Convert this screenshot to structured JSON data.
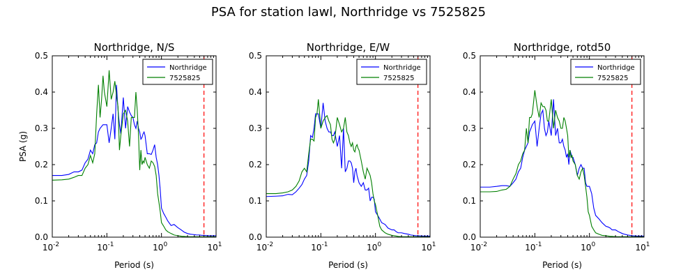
{
  "figure": {
    "suptitle": "PSA for station lawl, Northridge vs 7525825"
  },
  "chart_data": [
    {
      "type": "line",
      "title": "Northridge, N/S",
      "xlabel": "Period (s)",
      "ylabel": "PSA (g)",
      "xscale": "log",
      "xlim": [
        0.01,
        10
      ],
      "ylim": [
        0.0,
        0.5
      ],
      "x_ticks": [
        "10^-2",
        "10^-1",
        "10^0",
        "10^1"
      ],
      "y_ticks": [
        "0.0",
        "0.1",
        "0.2",
        "0.3",
        "0.4",
        "0.5"
      ],
      "legend": "top-right",
      "grid": false,
      "vline": {
        "x": 6.0,
        "color": "#ff0000",
        "style": "dashed"
      },
      "series": [
        {
          "name": "Northridge",
          "color": "#0000ff",
          "x": [
            0.01,
            0.015,
            0.02,
            0.025,
            0.03,
            0.035,
            0.04,
            0.045,
            0.05,
            0.055,
            0.06,
            0.065,
            0.07,
            0.075,
            0.08,
            0.085,
            0.09,
            0.1,
            0.11,
            0.12,
            0.13,
            0.14,
            0.15,
            0.16,
            0.17,
            0.18,
            0.2,
            0.22,
            0.24,
            0.26,
            0.28,
            0.3,
            0.32,
            0.34,
            0.36,
            0.38,
            0.4,
            0.42,
            0.44,
            0.46,
            0.48,
            0.5,
            0.55,
            0.6,
            0.65,
            0.7,
            0.75,
            0.8,
            0.85,
            0.9,
            0.95,
            1.0,
            1.1,
            1.2,
            1.3,
            1.5,
            1.7,
            2.0,
            2.2,
            2.4,
            2.6,
            3.0,
            3.4,
            4.0,
            4.4,
            5.0,
            5.5,
            6.0,
            7.5,
            10.0
          ],
          "y": [
            0.17,
            0.17,
            0.173,
            0.18,
            0.18,
            0.185,
            0.205,
            0.215,
            0.24,
            0.23,
            0.255,
            0.26,
            0.29,
            0.3,
            0.305,
            0.31,
            0.31,
            0.31,
            0.26,
            0.3,
            0.34,
            0.27,
            0.42,
            0.35,
            0.31,
            0.285,
            0.385,
            0.3,
            0.36,
            0.345,
            0.335,
            0.33,
            0.31,
            0.3,
            0.32,
            0.3,
            0.29,
            0.27,
            0.275,
            0.285,
            0.29,
            0.28,
            0.23,
            0.23,
            0.228,
            0.24,
            0.255,
            0.22,
            0.2,
            0.17,
            0.13,
            0.08,
            0.065,
            0.055,
            0.045,
            0.032,
            0.035,
            0.026,
            0.022,
            0.018,
            0.014,
            0.01,
            0.008,
            0.007,
            0.006,
            0.006,
            0.005,
            0.005,
            0.004,
            0.004
          ]
        },
        {
          "name": "7525825",
          "color": "#007f00",
          "x": [
            0.01,
            0.015,
            0.02,
            0.025,
            0.03,
            0.035,
            0.04,
            0.045,
            0.05,
            0.055,
            0.06,
            0.065,
            0.07,
            0.075,
            0.08,
            0.085,
            0.09,
            0.1,
            0.11,
            0.12,
            0.13,
            0.14,
            0.15,
            0.16,
            0.17,
            0.18,
            0.2,
            0.22,
            0.24,
            0.26,
            0.28,
            0.3,
            0.32,
            0.34,
            0.36,
            0.38,
            0.4,
            0.42,
            0.44,
            0.46,
            0.48,
            0.5,
            0.55,
            0.6,
            0.65,
            0.7,
            0.75,
            0.8,
            0.85,
            0.9,
            0.95,
            1.0,
            1.1,
            1.2,
            1.3,
            1.5,
            1.7,
            2.0,
            2.2,
            2.4,
            2.6,
            3.0,
            3.4,
            4.0,
            4.4,
            5.0,
            5.5,
            6.0,
            7.5,
            10.0
          ],
          "y": [
            0.157,
            0.158,
            0.16,
            0.165,
            0.17,
            0.17,
            0.19,
            0.2,
            0.225,
            0.205,
            0.23,
            0.34,
            0.42,
            0.33,
            0.38,
            0.445,
            0.4,
            0.36,
            0.46,
            0.38,
            0.4,
            0.43,
            0.39,
            0.36,
            0.24,
            0.28,
            0.34,
            0.35,
            0.32,
            0.25,
            0.33,
            0.33,
            0.33,
            0.4,
            0.35,
            0.28,
            0.185,
            0.24,
            0.2,
            0.21,
            0.205,
            0.22,
            0.2,
            0.19,
            0.21,
            0.205,
            0.195,
            0.17,
            0.12,
            0.095,
            0.07,
            0.04,
            0.03,
            0.02,
            0.015,
            0.01,
            0.006,
            0.004,
            0.003,
            0.002,
            0.002,
            0.001,
            0.001,
            0.001,
            0.001,
            0.001,
            0.001,
            0.001,
            0.001,
            0.001
          ]
        }
      ]
    },
    {
      "type": "line",
      "title": "Northridge, E/W",
      "xlabel": "Period (s)",
      "ylabel": "",
      "xscale": "log",
      "xlim": [
        0.01,
        10
      ],
      "ylim": [
        0.0,
        0.5
      ],
      "x_ticks": [
        "10^-2",
        "10^-1",
        "10^0",
        "10^1"
      ],
      "y_ticks": [
        "0.0",
        "0.1",
        "0.2",
        "0.3",
        "0.4",
        "0.5"
      ],
      "legend": "top-right",
      "grid": false,
      "vline": {
        "x": 6.0,
        "color": "#ff0000",
        "style": "dashed"
      },
      "series": [
        {
          "name": "Northridge",
          "color": "#0000ff",
          "x": [
            0.01,
            0.015,
            0.02,
            0.025,
            0.03,
            0.035,
            0.04,
            0.045,
            0.05,
            0.055,
            0.06,
            0.065,
            0.07,
            0.075,
            0.08,
            0.085,
            0.09,
            0.1,
            0.11,
            0.12,
            0.13,
            0.14,
            0.15,
            0.16,
            0.17,
            0.18,
            0.2,
            0.22,
            0.24,
            0.26,
            0.28,
            0.3,
            0.32,
            0.34,
            0.36,
            0.38,
            0.4,
            0.42,
            0.44,
            0.46,
            0.48,
            0.5,
            0.55,
            0.6,
            0.65,
            0.7,
            0.75,
            0.8,
            0.85,
            0.9,
            0.95,
            1.0,
            1.1,
            1.2,
            1.3,
            1.5,
            1.7,
            2.0,
            2.2,
            2.4,
            2.6,
            3.0,
            3.4,
            4.0,
            4.4,
            5.0,
            5.5,
            6.0,
            7.5,
            10.0
          ],
          "y": [
            0.112,
            0.113,
            0.114,
            0.118,
            0.117,
            0.125,
            0.135,
            0.145,
            0.16,
            0.17,
            0.21,
            0.28,
            0.275,
            0.3,
            0.34,
            0.34,
            0.34,
            0.3,
            0.37,
            0.32,
            0.3,
            0.29,
            0.29,
            0.28,
            0.28,
            0.29,
            0.25,
            0.28,
            0.19,
            0.3,
            0.18,
            0.19,
            0.21,
            0.21,
            0.205,
            0.19,
            0.15,
            0.18,
            0.19,
            0.17,
            0.16,
            0.15,
            0.14,
            0.15,
            0.13,
            0.13,
            0.135,
            0.1,
            0.11,
            0.11,
            0.105,
            0.07,
            0.06,
            0.05,
            0.04,
            0.035,
            0.025,
            0.02,
            0.02,
            0.015,
            0.012,
            0.012,
            0.01,
            0.008,
            0.006,
            0.005,
            0.004,
            0.004,
            0.003,
            0.003
          ]
        },
        {
          "name": "7525825",
          "color": "#007f00",
          "x": [
            0.01,
            0.015,
            0.02,
            0.025,
            0.03,
            0.035,
            0.04,
            0.045,
            0.05,
            0.055,
            0.06,
            0.065,
            0.07,
            0.075,
            0.08,
            0.085,
            0.09,
            0.1,
            0.11,
            0.12,
            0.13,
            0.14,
            0.15,
            0.16,
            0.17,
            0.18,
            0.2,
            0.22,
            0.24,
            0.26,
            0.28,
            0.3,
            0.32,
            0.34,
            0.36,
            0.38,
            0.4,
            0.42,
            0.44,
            0.46,
            0.48,
            0.5,
            0.55,
            0.6,
            0.65,
            0.7,
            0.75,
            0.8,
            0.85,
            0.9,
            0.95,
            1.0,
            1.1,
            1.2,
            1.3,
            1.5,
            1.7,
            2.0,
            2.2,
            2.4,
            2.6,
            3.0,
            3.4,
            4.0,
            4.4,
            5.0,
            5.5,
            6.0,
            7.5,
            10.0
          ],
          "y": [
            0.12,
            0.12,
            0.122,
            0.125,
            0.13,
            0.14,
            0.155,
            0.18,
            0.19,
            0.18,
            0.23,
            0.27,
            0.27,
            0.265,
            0.33,
            0.34,
            0.38,
            0.3,
            0.32,
            0.33,
            0.335,
            0.32,
            0.31,
            0.27,
            0.26,
            0.27,
            0.33,
            0.31,
            0.29,
            0.3,
            0.33,
            0.29,
            0.28,
            0.26,
            0.25,
            0.26,
            0.24,
            0.235,
            0.25,
            0.255,
            0.245,
            0.24,
            0.21,
            0.18,
            0.16,
            0.19,
            0.18,
            0.17,
            0.15,
            0.12,
            0.1,
            0.09,
            0.06,
            0.03,
            0.02,
            0.012,
            0.008,
            0.005,
            0.004,
            0.003,
            0.002,
            0.001,
            0.001,
            0.001,
            0.001,
            0.001,
            0.001,
            0.001,
            0.001,
            0.001
          ]
        }
      ]
    },
    {
      "type": "line",
      "title": "Northridge, rotd50",
      "xlabel": "Period (s)",
      "ylabel": "",
      "xscale": "log",
      "xlim": [
        0.01,
        10
      ],
      "ylim": [
        0.0,
        0.5
      ],
      "x_ticks": [
        "10^-2",
        "10^-1",
        "10^0",
        "10^1"
      ],
      "y_ticks": [
        "0.0",
        "0.1",
        "0.2",
        "0.3",
        "0.4",
        "0.5"
      ],
      "legend": "top-right",
      "grid": false,
      "vline": {
        "x": 6.0,
        "color": "#ff0000",
        "style": "dashed"
      },
      "series": [
        {
          "name": "Northridge",
          "color": "#0000ff",
          "x": [
            0.01,
            0.015,
            0.02,
            0.025,
            0.03,
            0.035,
            0.04,
            0.045,
            0.05,
            0.055,
            0.06,
            0.065,
            0.07,
            0.075,
            0.08,
            0.085,
            0.09,
            0.1,
            0.11,
            0.12,
            0.13,
            0.14,
            0.15,
            0.16,
            0.17,
            0.18,
            0.2,
            0.22,
            0.24,
            0.26,
            0.28,
            0.3,
            0.32,
            0.34,
            0.36,
            0.38,
            0.4,
            0.42,
            0.44,
            0.46,
            0.48,
            0.5,
            0.55,
            0.6,
            0.65,
            0.7,
            0.75,
            0.8,
            0.85,
            0.9,
            0.95,
            1.0,
            1.1,
            1.2,
            1.3,
            1.5,
            1.7,
            2.0,
            2.2,
            2.4,
            2.6,
            3.0,
            3.4,
            4.0,
            4.4,
            5.0,
            5.5,
            6.0,
            7.5,
            10.0
          ],
          "y": [
            0.138,
            0.138,
            0.14,
            0.142,
            0.142,
            0.14,
            0.15,
            0.16,
            0.18,
            0.19,
            0.22,
            0.24,
            0.25,
            0.26,
            0.29,
            0.3,
            0.31,
            0.32,
            0.25,
            0.3,
            0.34,
            0.35,
            0.3,
            0.28,
            0.29,
            0.32,
            0.28,
            0.38,
            0.28,
            0.3,
            0.26,
            0.26,
            0.27,
            0.25,
            0.24,
            0.22,
            0.23,
            0.2,
            0.24,
            0.23,
            0.22,
            0.22,
            0.2,
            0.17,
            0.19,
            0.2,
            0.19,
            0.19,
            0.15,
            0.14,
            0.14,
            0.14,
            0.12,
            0.08,
            0.06,
            0.05,
            0.04,
            0.03,
            0.028,
            0.025,
            0.02,
            0.02,
            0.015,
            0.01,
            0.008,
            0.006,
            0.005,
            0.004,
            0.003,
            0.003
          ]
        },
        {
          "name": "7525825",
          "color": "#007f00",
          "x": [
            0.01,
            0.015,
            0.02,
            0.025,
            0.03,
            0.035,
            0.04,
            0.045,
            0.05,
            0.055,
            0.06,
            0.065,
            0.07,
            0.075,
            0.08,
            0.085,
            0.09,
            0.1,
            0.11,
            0.12,
            0.13,
            0.14,
            0.15,
            0.16,
            0.17,
            0.18,
            0.2,
            0.22,
            0.24,
            0.26,
            0.28,
            0.3,
            0.32,
            0.34,
            0.36,
            0.38,
            0.4,
            0.42,
            0.44,
            0.46,
            0.48,
            0.5,
            0.55,
            0.6,
            0.65,
            0.7,
            0.75,
            0.8,
            0.85,
            0.9,
            0.95,
            1.0,
            1.1,
            1.2,
            1.3,
            1.5,
            1.7,
            2.0,
            2.2,
            2.4,
            2.6,
            3.0,
            3.4,
            4.0,
            4.4,
            5.0,
            5.5,
            6.0,
            7.5,
            10.0
          ],
          "y": [
            0.125,
            0.125,
            0.126,
            0.13,
            0.132,
            0.14,
            0.16,
            0.175,
            0.2,
            0.21,
            0.23,
            0.24,
            0.3,
            0.26,
            0.33,
            0.33,
            0.34,
            0.405,
            0.36,
            0.33,
            0.37,
            0.36,
            0.36,
            0.35,
            0.32,
            0.32,
            0.38,
            0.3,
            0.35,
            0.33,
            0.32,
            0.3,
            0.3,
            0.33,
            0.32,
            0.3,
            0.28,
            0.22,
            0.24,
            0.22,
            0.225,
            0.21,
            0.2,
            0.17,
            0.16,
            0.18,
            0.19,
            0.17,
            0.14,
            0.11,
            0.07,
            0.06,
            0.03,
            0.02,
            0.012,
            0.008,
            0.005,
            0.004,
            0.003,
            0.002,
            0.002,
            0.001,
            0.001,
            0.001,
            0.001,
            0.001,
            0.001,
            0.001,
            0.001,
            0.001
          ]
        }
      ]
    }
  ]
}
